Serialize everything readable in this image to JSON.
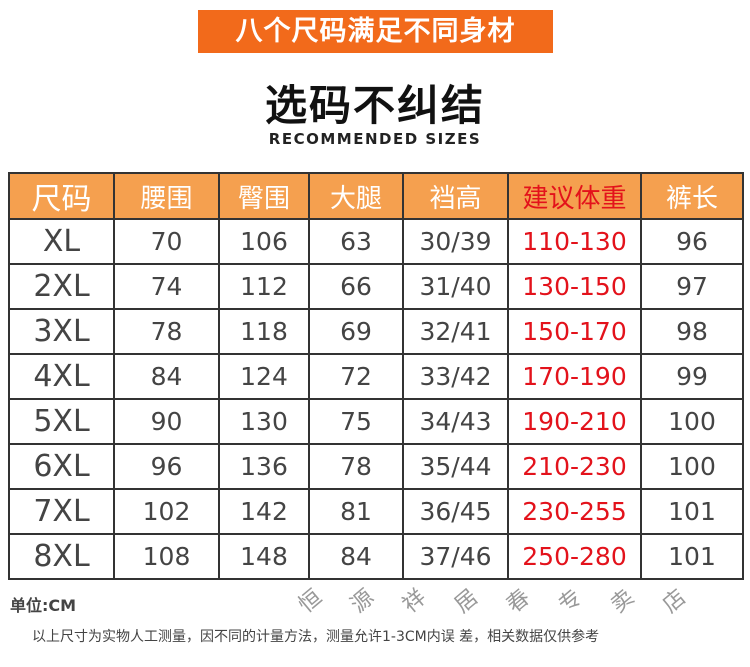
{
  "banner": "八个尺码满足不同身材",
  "title": "选码不纠结",
  "subtitle": "RECOMMENDED SIZES",
  "table": {
    "headers": [
      "尺码",
      "腰围",
      "臀围",
      "大腿",
      "裆高",
      "建议体重",
      "裤长"
    ],
    "rows": [
      [
        "XL",
        "70",
        "106",
        "63",
        "30/39",
        "110-130",
        "96"
      ],
      [
        "2XL",
        "74",
        "112",
        "66",
        "31/40",
        "130-150",
        "97"
      ],
      [
        "3XL",
        "78",
        "118",
        "69",
        "32/41",
        "150-170",
        "98"
      ],
      [
        "4XL",
        "84",
        "124",
        "72",
        "33/42",
        "170-190",
        "99"
      ],
      [
        "5XL",
        "90",
        "130",
        "75",
        "34/43",
        "190-210",
        "100"
      ],
      [
        "6XL",
        "96",
        "136",
        "78",
        "35/44",
        "210-230",
        "100"
      ],
      [
        "7XL",
        "102",
        "142",
        "81",
        "36/45",
        "230-255",
        "101"
      ],
      [
        "8XL",
        "108",
        "148",
        "84",
        "37/46",
        "250-280",
        "101"
      ]
    ]
  },
  "unit": "单位:CM",
  "note": "以上尺寸为实物人工测量，因不同的计量方法，测量允许1-3CM内误 差，相关数据仅供参考",
  "watermark": "恒源祥居春专卖店",
  "colors": {
    "banner": "#f26a1b",
    "header": "#f5a04f",
    "weight": "#e3121b"
  }
}
